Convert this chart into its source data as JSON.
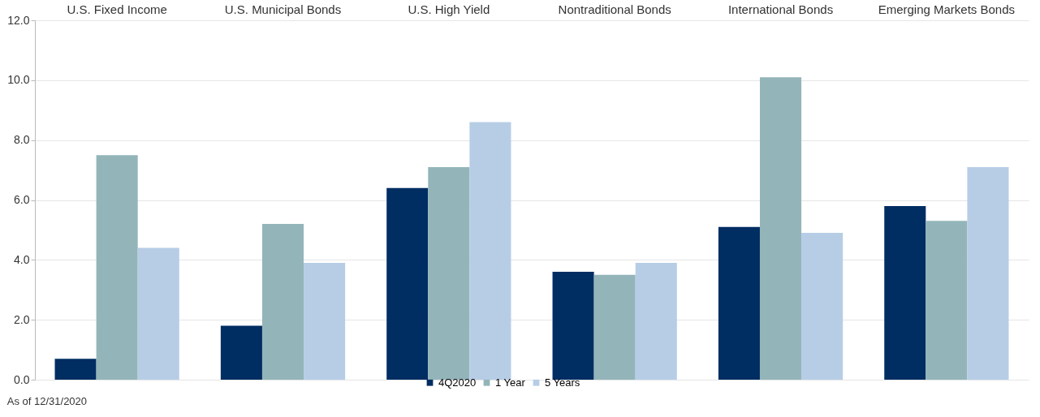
{
  "chart_data": {
    "type": "bar",
    "categories": [
      "U.S. Fixed Income",
      "U.S. Municipal Bonds",
      "U.S. High Yield",
      "Nontraditional Bonds",
      "International Bonds",
      "Emerging Markets Bonds"
    ],
    "series": [
      {
        "name": "4Q2020",
        "color": "#002d62",
        "values": [
          0.7,
          1.8,
          6.4,
          3.6,
          5.1,
          5.8
        ]
      },
      {
        "name": "1 Year",
        "color": "#93b5b9",
        "values": [
          7.5,
          5.2,
          7.1,
          3.5,
          10.1,
          5.3
        ]
      },
      {
        "name": "5 Years",
        "color": "#b7cde6",
        "values": [
          4.4,
          3.9,
          8.6,
          3.9,
          4.9,
          7.1
        ]
      }
    ],
    "ylim": [
      0,
      12
    ],
    "yticks": [
      {
        "value": 0,
        "label": "0.0"
      },
      {
        "value": 2,
        "label": "2.0"
      },
      {
        "value": 4,
        "label": "4.0"
      },
      {
        "value": 6,
        "label": "6.0"
      },
      {
        "value": 8,
        "label": "8.0"
      },
      {
        "value": 10,
        "label": "10.0"
      },
      {
        "value": 12,
        "label": "12.0"
      }
    ],
    "grid": "y",
    "legend": "bottom",
    "annotations": [
      "As of 12/31/2020"
    ]
  }
}
